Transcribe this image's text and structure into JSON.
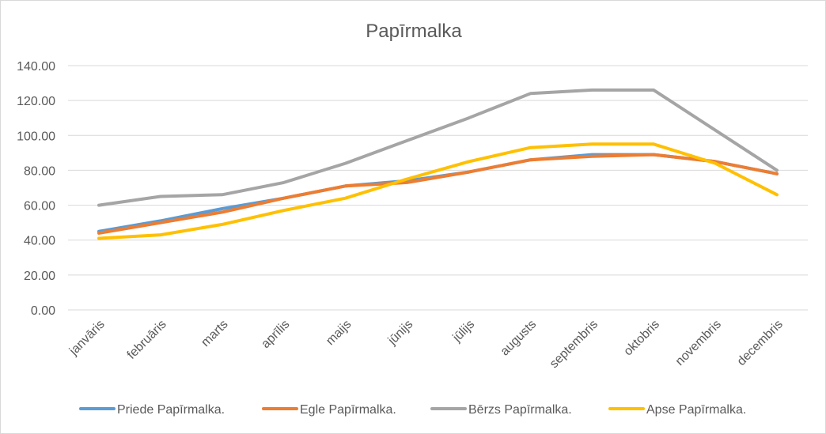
{
  "chart_data": {
    "type": "line",
    "title": "Papīrmalka",
    "xlabel": "",
    "ylabel": "",
    "categories": [
      "janvāris",
      "februāris",
      "marts",
      "aprīlis",
      "maijs",
      "jūnijs",
      "jūlijs",
      "augusts",
      "septembris",
      "oktobris",
      "novembris",
      "decembris"
    ],
    "y_ticks": [
      "0.00",
      "20.00",
      "40.00",
      "60.00",
      "80.00",
      "100.00",
      "120.00",
      "140.00"
    ],
    "ylim": [
      0,
      140
    ],
    "grid": "horizontal",
    "legend_position": "bottom",
    "series": [
      {
        "name": "Priede Papīrmalka.",
        "color": "#5b9bd5",
        "values": [
          45,
          51,
          58,
          64,
          71,
          74,
          79,
          86,
          89,
          89,
          85,
          78
        ]
      },
      {
        "name": "Egle Papīrmalka.",
        "color": "#ed7d31",
        "values": [
          44,
          50,
          56,
          64,
          71,
          73,
          79,
          86,
          88,
          89,
          85,
          78
        ]
      },
      {
        "name": "Bērzs Papīrmalka.",
        "color": "#a5a5a5",
        "values": [
          60,
          65,
          66,
          73,
          84,
          97,
          110,
          124,
          126,
          126,
          103,
          80
        ]
      },
      {
        "name": "Apse Papīrmalka.",
        "color": "#ffc000",
        "values": [
          41,
          43,
          49,
          57,
          64,
          75,
          85,
          93,
          95,
          95,
          84,
          66
        ]
      }
    ]
  }
}
